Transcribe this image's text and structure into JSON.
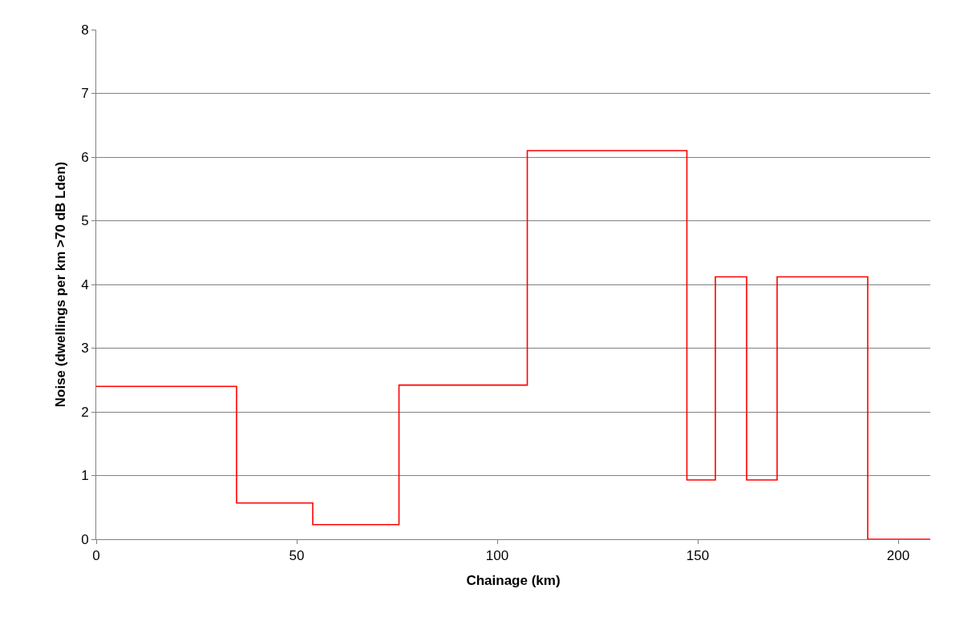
{
  "chart_data": {
    "type": "step",
    "xlabel": "Chainage (km)",
    "ylabel": "Noise (dwellings per km >70 dB Lden)",
    "x": [
      0,
      35,
      54,
      75.5,
      107.5,
      147.3,
      154.4,
      162.2,
      169.8,
      192.4,
      208
    ],
    "series": [
      {
        "color": "#ff0000",
        "values": [
          2.4,
          0.57,
          0.23,
          2.42,
          6.1,
          0.93,
          4.12,
          0.93,
          4.12,
          0,
          0
        ]
      }
    ],
    "xlim": [
      0,
      208
    ],
    "xticks": [
      0,
      50,
      100,
      150,
      200
    ],
    "ylim": [
      0,
      8
    ],
    "yticks": [
      0,
      1,
      2,
      3,
      4,
      5,
      6,
      7,
      8
    ],
    "grid": "y",
    "legend": false,
    "marker": "none",
    "line_style": "solid"
  }
}
